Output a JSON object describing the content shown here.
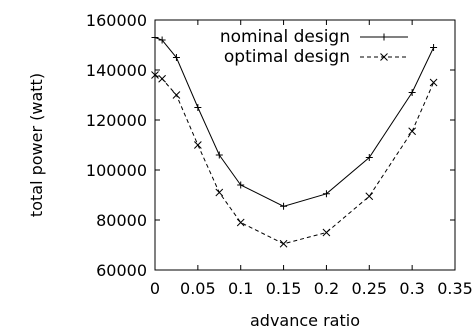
{
  "chart_data": {
    "type": "line",
    "title": "",
    "xlabel": "advance ratio",
    "ylabel": "total power (watt)",
    "xlim": [
      0,
      0.35
    ],
    "ylim": [
      60000,
      160000
    ],
    "x_ticks": [
      "0",
      "0.05",
      "0.1",
      "0.15",
      "0.2",
      "0.25",
      "0.3",
      "0.35"
    ],
    "y_ticks": [
      "60000",
      "80000",
      "100000",
      "120000",
      "140000",
      "160000"
    ],
    "x_tick_values": [
      0,
      0.05,
      0.1,
      0.15,
      0.2,
      0.25,
      0.3,
      0.35
    ],
    "y_tick_values": [
      60000,
      80000,
      100000,
      120000,
      140000,
      160000
    ],
    "grid": false,
    "legend_position": "top-right",
    "series": [
      {
        "name": "nominal design",
        "line_style": "solid",
        "marker": "plus",
        "color": "#000000",
        "x": [
          0,
          0.0083,
          0.025,
          0.05,
          0.075,
          0.1,
          0.15,
          0.2,
          0.25,
          0.3,
          0.325
        ],
        "y": [
          153000,
          152000,
          145000,
          125000,
          106000,
          94000,
          85500,
          90500,
          105000,
          131000,
          149000
        ]
      },
      {
        "name": "optimal design",
        "line_style": "dashed",
        "marker": "x",
        "color": "#000000",
        "x": [
          0,
          0.0083,
          0.025,
          0.05,
          0.075,
          0.1,
          0.15,
          0.2,
          0.25,
          0.3,
          0.325
        ],
        "y": [
          138000,
          136500,
          130000,
          110000,
          91000,
          79000,
          70500,
          75000,
          89500,
          115500,
          135000
        ]
      }
    ]
  }
}
